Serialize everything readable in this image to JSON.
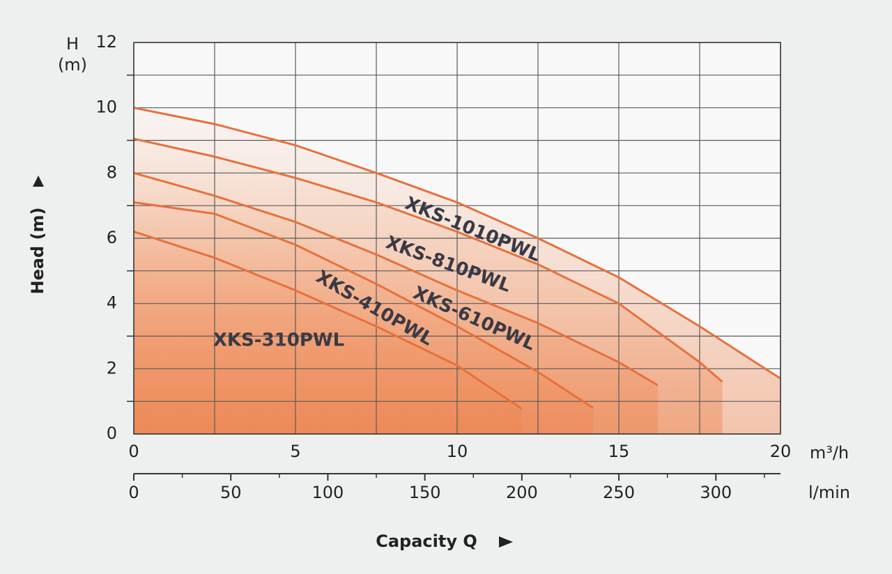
{
  "chart_data": {
    "type": "line",
    "y_label_top": "H",
    "y_unit_top": "(m)",
    "y_axis_title": "Head (m)",
    "x_unit": "m³/h",
    "x2_unit": "l/min",
    "x_axis_title": "Capacity Q",
    "xlim": [
      0,
      20
    ],
    "xticks": [
      0,
      5,
      10,
      15,
      20
    ],
    "xgrid": [
      2.5,
      7.5,
      12.5,
      17.5
    ],
    "ylim": [
      0,
      12
    ],
    "yticks": [
      0,
      2,
      4,
      6,
      8,
      10,
      12
    ],
    "ygrid": [
      1,
      3,
      5,
      7,
      9,
      11
    ],
    "x2lim": [
      0,
      333.3
    ],
    "x2ticks": [
      0,
      50,
      100,
      150,
      200,
      250,
      300
    ],
    "x2minor": [
      25,
      75,
      125,
      175,
      225,
      275,
      325
    ],
    "grid": true,
    "series": [
      {
        "name": "XKS-1010PWL",
        "color": "#e8703c",
        "x": [
          0,
          2.5,
          5,
          7.5,
          10,
          12.5,
          15,
          17.5,
          20
        ],
        "values": [
          10,
          9.5,
          8.85,
          8.0,
          7.1,
          6.0,
          4.8,
          3.3,
          1.7
        ]
      },
      {
        "name": "XKS-810PWL",
        "color": "#e8703c",
        "x": [
          0,
          2.5,
          5,
          7.5,
          10,
          12.5,
          15,
          17.5,
          18.2
        ],
        "values": [
          9.05,
          8.5,
          7.85,
          7.1,
          6.2,
          5.2,
          4.0,
          2.2,
          1.6
        ]
      },
      {
        "name": "XKS-610PWL",
        "color": "#e8703c",
        "x": [
          0,
          2.5,
          5,
          7.5,
          10,
          12.5,
          15,
          16.2
        ],
        "values": [
          8.0,
          7.3,
          6.5,
          5.5,
          4.4,
          3.4,
          2.2,
          1.5
        ]
      },
      {
        "name": "XKS-410PWL",
        "color": "#e8703c",
        "x": [
          0,
          2.5,
          5,
          7.5,
          10,
          12.5,
          14.2
        ],
        "values": [
          7.1,
          6.75,
          5.8,
          4.6,
          3.3,
          1.9,
          0.8
        ]
      },
      {
        "name": "XKS-310PWL",
        "color": "#e8703c",
        "x": [
          0,
          2.5,
          5,
          7.5,
          10,
          12
        ],
        "values": [
          6.2,
          5.4,
          4.4,
          3.3,
          2.1,
          0.77
        ]
      }
    ]
  }
}
